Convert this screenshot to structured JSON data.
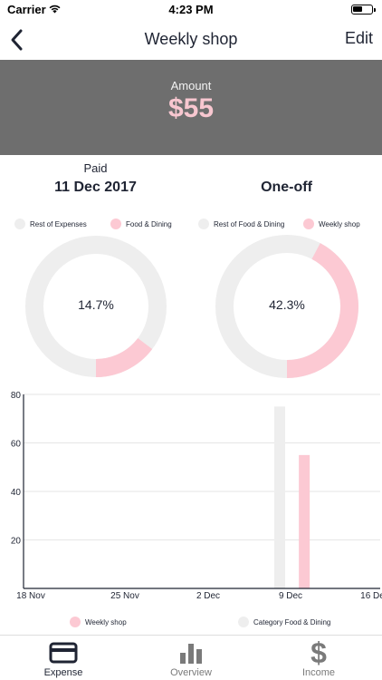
{
  "status_bar": {
    "carrier": "Carrier",
    "time": "4:23 PM",
    "icons": [
      "wifi-icon",
      "battery-icon"
    ]
  },
  "nav": {
    "title": "Weekly shop",
    "edit_label": "Edit",
    "back_icon": "chevron-left-icon"
  },
  "amount": {
    "label": "Amount",
    "value": "$55"
  },
  "info": {
    "left_sub": "Paid",
    "left_big": "11 Dec 2017",
    "right_sub": "",
    "right_big": "One-off"
  },
  "donuts": [
    {
      "legend": [
        {
          "name": "Rest of Expenses",
          "color": "#eeeeee"
        },
        {
          "name": "Food & Dining",
          "color": "#fcc9d3"
        }
      ],
      "percent": 14.7,
      "percent_label": "14.7%"
    },
    {
      "legend": [
        {
          "name": "Rest of Food & Dining",
          "color": "#eeeeee"
        },
        {
          "name": "Weekly shop",
          "color": "#fcc9d3"
        }
      ],
      "percent": 42.3,
      "percent_label": "42.3%"
    }
  ],
  "chart_data": {
    "type": "bar",
    "x_ticks": [
      "18 Nov",
      "25 Nov",
      "2 Dec",
      "9 Dec",
      "16 Dec"
    ],
    "y_ticks": [
      20,
      40,
      60,
      80
    ],
    "ylim": [
      0,
      80
    ],
    "series": [
      {
        "name": "Category Food & Dining",
        "color": "#eeeeee",
        "points": [
          {
            "x": "9 Dec",
            "y": 75
          }
        ]
      },
      {
        "name": "Weekly shop",
        "color": "#fcc9d3",
        "points": [
          {
            "x": "11 Dec",
            "y": 55
          }
        ]
      }
    ],
    "legend": [
      {
        "name": "Weekly shop",
        "color": "#fcc9d3"
      },
      {
        "name": "Category Food & Dining",
        "color": "#eeeeee"
      }
    ],
    "grid": true
  },
  "tabs": [
    {
      "label": "Expense",
      "icon": "credit-card-icon",
      "active": true
    },
    {
      "label": "Overview",
      "icon": "bar-chart-icon",
      "active": false
    },
    {
      "label": "Income",
      "icon": "dollar-icon",
      "active": false
    }
  ],
  "colors": {
    "primary": "#1f2433",
    "accent_pink": "#fcc9d3",
    "neutral": "#eeeeee",
    "band": "#6e6e6e",
    "inactive_tab": "#7a7a7a"
  }
}
